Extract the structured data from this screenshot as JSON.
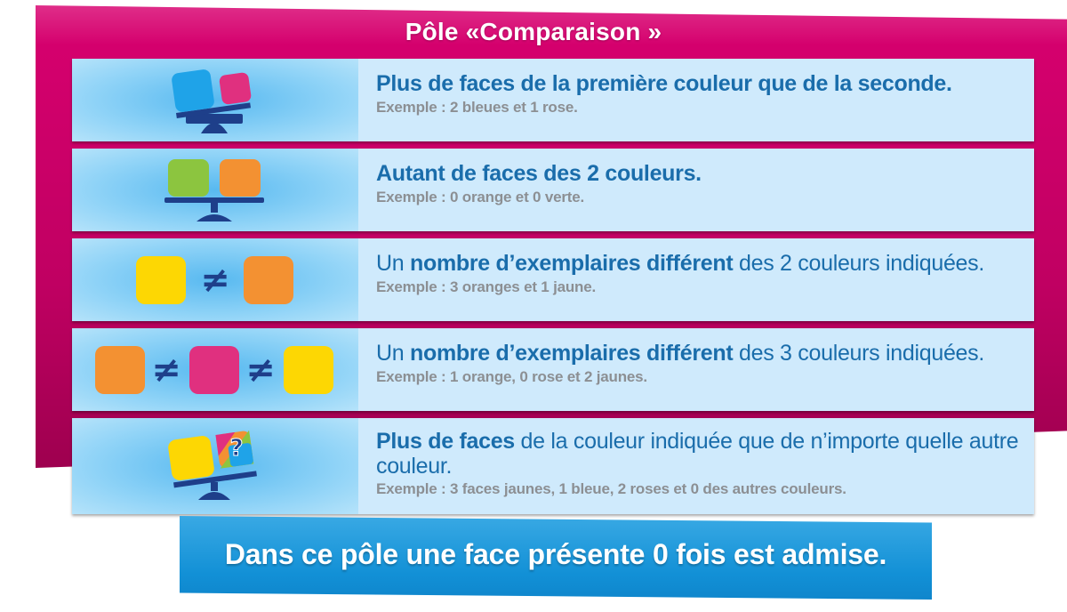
{
  "title": "Pôle «Comparaison »",
  "rows": [
    {
      "main_bold": "Plus de faces de la première couleur que de la seconde.",
      "example": "Exemple : 2 bleues et 1 rose.",
      "icon": "balance-tilted-blue-pink-icon"
    },
    {
      "main_bold": "Autant de faces des 2 couleurs.",
      "example": "Exemple : 0 orange et 0 verte.",
      "icon": "balance-level-green-orange-icon"
    },
    {
      "main_pre": "Un ",
      "main_bold": "nombre d’exemplaires différent",
      "main_post": " des 2 couleurs indiquées.",
      "example": "Exemple : 3 oranges et 1 jaune.",
      "icon": "yellow-not-equal-orange-icon",
      "symbol": "≠"
    },
    {
      "main_pre": "Un ",
      "main_bold": "nombre d’exemplaires différent",
      "main_post": " des 3 couleurs indiquées.",
      "example": "Exemple : 1 orange, 0 rose et 2 jaunes.",
      "icon": "orange-pink-yellow-not-equal-icon",
      "symbol": "≠"
    },
    {
      "main_bold": "Plus de faces",
      "main_post": " de la couleur indiquée que de n’importe quelle autre couleur.",
      "example": "Exemple : 3 faces jaunes, 1 bleue, 2 roses et 0 des autres couleurs.",
      "icon": "balance-yellow-question-icon",
      "symbol": "?"
    }
  ],
  "footer": "Dans ce pôle une face présente 0 fois est admise.",
  "colors": {
    "pink": "#d8006f",
    "blue_text": "#1a6dab",
    "grey_text": "#8c8f93",
    "cube_blue": "#1fa3e8",
    "cube_pink": "#e0307f",
    "cube_green": "#8cc53f",
    "cube_orange": "#f39132",
    "cube_yellow": "#fdd703",
    "balance_navy": "#1e3f8a"
  }
}
